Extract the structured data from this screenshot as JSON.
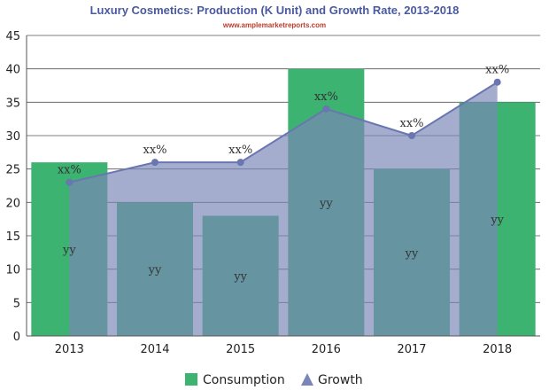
{
  "chart_data": {
    "type": "bar",
    "title": "Luxury Cosmetics: Production (K Unit) and Growth Rate, 2013-2018",
    "subtitle": "www.amplemarketreports.com",
    "categories": [
      "2013",
      "2014",
      "2015",
      "2016",
      "2017",
      "2018"
    ],
    "ylim": [
      0,
      45
    ],
    "yticks": [
      0,
      5,
      10,
      15,
      20,
      25,
      30,
      35,
      40,
      45
    ],
    "grid": true,
    "legend_position": "bottom",
    "series": [
      {
        "name": "Consumption",
        "type": "bar",
        "color": "#3cb371",
        "values": [
          26,
          20,
          18,
          40,
          25,
          35
        ],
        "labels": [
          "yy",
          "yy",
          "yy",
          "yy",
          "yy",
          "yy"
        ]
      },
      {
        "name": "Growth",
        "type": "area",
        "color": "#7b86b8",
        "values": [
          23,
          26,
          26,
          34,
          30,
          38
        ],
        "labels": [
          "xx%",
          "xx%",
          "xx%",
          "xx%",
          "xx%",
          "xx%"
        ]
      }
    ]
  }
}
